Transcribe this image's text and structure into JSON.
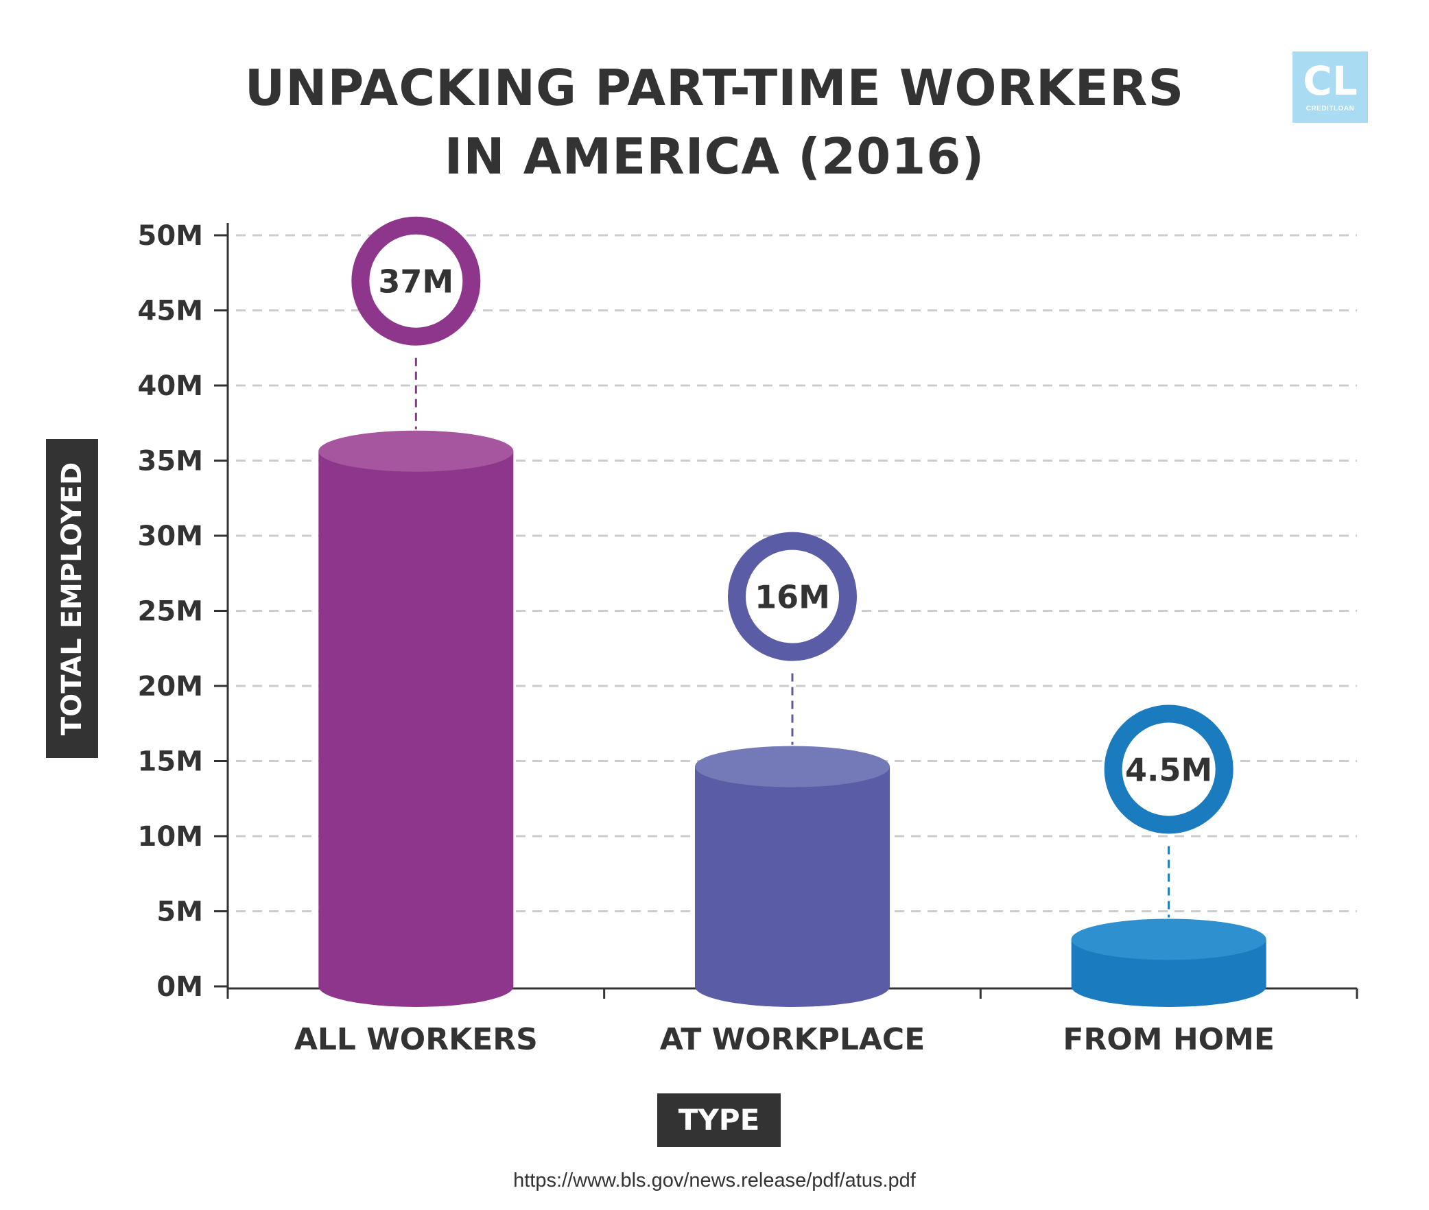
{
  "title_lines": [
    "UNPACKING PART-TIME WORKERS",
    "IN AMERICA (2016)"
  ],
  "logo": {
    "text": "CL",
    "subtext": "CREDITLOAN",
    "color": "#a9dbf2"
  },
  "source": "https://www.bls.gov/news.release/pdf/atus.pdf",
  "chart_data": {
    "type": "bar",
    "ylabel": "TOTAL EMPLOYED",
    "xlabel": "TYPE",
    "ylim": [
      0,
      50
    ],
    "yticks": [
      0,
      5,
      10,
      15,
      20,
      25,
      30,
      35,
      40,
      45,
      50
    ],
    "ytick_labels": [
      "0M",
      "5M",
      "10M",
      "15M",
      "20M",
      "25M",
      "30M",
      "35M",
      "40M",
      "45M",
      "50M"
    ],
    "grid": true,
    "categories": [
      "ALL WORKERS",
      "AT WORKPLACE",
      "FROM HOME"
    ],
    "values": [
      37,
      16,
      4.5
    ],
    "data_labels": [
      "37M",
      "16M",
      "4.5M"
    ],
    "colors": [
      "#8e368b",
      "#5a5da5",
      "#1b7bbf"
    ],
    "top_colors": [
      "#a5569e",
      "#7479b8",
      "#2e90cf"
    ]
  }
}
